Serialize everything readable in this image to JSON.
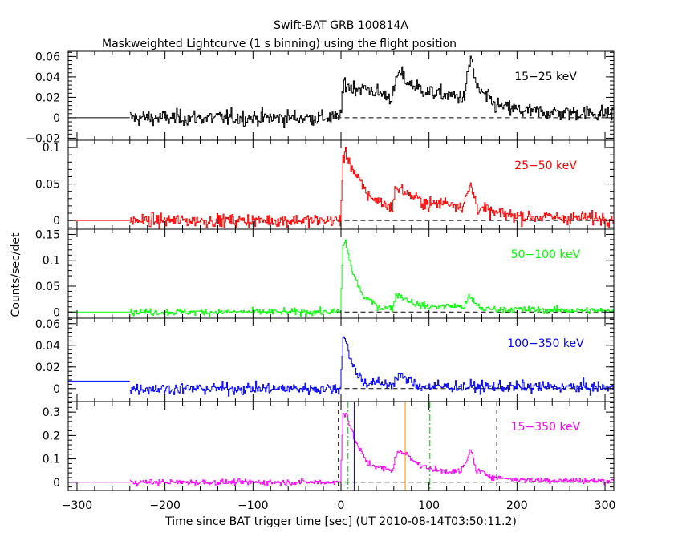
{
  "chart_data": {
    "type": "line",
    "title": "Swift-BAT GRB 100814A",
    "subtitle": "Maskweighted Lightcurve (1 s binning) using the flight position",
    "xlabel": "Time since BAT trigger time [sec] (UT 2010-08-14T03:50:11.2)",
    "ylabel": "Counts/sec/det",
    "xlim": [
      -310,
      310
    ],
    "xticks": [
      -300,
      -200,
      -100,
      0,
      100,
      200,
      300
    ],
    "data_start": -240,
    "panels": [
      {
        "name": "15−25 keV",
        "color": "#000000",
        "ylim": [
          -0.022,
          0.065
        ],
        "yticks": [
          -0.02,
          0,
          0.02,
          0.04,
          0.06
        ],
        "yticklabels": [
          "−0.02",
          "0",
          "0.02",
          "0.04",
          "0.06"
        ],
        "pre_level": 0,
        "noise": 0.0065,
        "shape": [
          [
            -5,
            0.0
          ],
          [
            0,
            0.006
          ],
          [
            3,
            0.035
          ],
          [
            10,
            0.03
          ],
          [
            30,
            0.028
          ],
          [
            50,
            0.022
          ],
          [
            58,
            0.02
          ],
          [
            65,
            0.045
          ],
          [
            75,
            0.035
          ],
          [
            90,
            0.028
          ],
          [
            100,
            0.025
          ],
          [
            120,
            0.022
          ],
          [
            140,
            0.02
          ],
          [
            145,
            0.05
          ],
          [
            148,
            0.06
          ],
          [
            153,
            0.03
          ],
          [
            175,
            0.012
          ],
          [
            210,
            0.006
          ],
          [
            310,
            0.004
          ]
        ]
      },
      {
        "name": "25−50 keV",
        "color": "#ff0000",
        "ylim": [
          -0.012,
          0.11
        ],
        "yticks": [
          0,
          0.05,
          0.1
        ],
        "yticklabels": [
          "0",
          "0.05",
          "0.1"
        ],
        "pre_level": 0,
        "noise": 0.0075,
        "shape": [
          [
            -5,
            0.0
          ],
          [
            -1,
            0.0
          ],
          [
            2,
            0.085
          ],
          [
            6,
            0.09
          ],
          [
            15,
            0.065
          ],
          [
            30,
            0.035
          ],
          [
            55,
            0.018
          ],
          [
            58,
            0.02
          ],
          [
            62,
            0.045
          ],
          [
            72,
            0.04
          ],
          [
            85,
            0.03
          ],
          [
            100,
            0.022
          ],
          [
            120,
            0.025
          ],
          [
            138,
            0.02
          ],
          [
            143,
            0.035
          ],
          [
            147,
            0.048
          ],
          [
            155,
            0.018
          ],
          [
            175,
            0.01
          ],
          [
            210,
            0.005
          ],
          [
            310,
            0.003
          ]
        ]
      },
      {
        "name": "50−100 keV",
        "color": "#00ff00",
        "ylim": [
          -0.012,
          0.16
        ],
        "yticks": [
          0,
          0.05,
          0.1,
          0.15
        ],
        "yticklabels": [
          "0",
          "0.05",
          "0.1",
          "0.15"
        ],
        "pre_level": 0,
        "noise": 0.0055,
        "shape": [
          [
            -5,
            0.0
          ],
          [
            -1,
            0.0
          ],
          [
            2,
            0.13
          ],
          [
            5,
            0.135
          ],
          [
            12,
            0.08
          ],
          [
            25,
            0.03
          ],
          [
            45,
            0.008
          ],
          [
            58,
            0.008
          ],
          [
            63,
            0.035
          ],
          [
            70,
            0.028
          ],
          [
            85,
            0.015
          ],
          [
            100,
            0.01
          ],
          [
            125,
            0.012
          ],
          [
            140,
            0.01
          ],
          [
            145,
            0.03
          ],
          [
            150,
            0.02
          ],
          [
            160,
            0.006
          ],
          [
            310,
            0.002
          ]
        ]
      },
      {
        "name": "100−350 keV",
        "color": "#0000ff",
        "ylim": [
          -0.012,
          0.065
        ],
        "yticks": [
          0,
          0.02,
          0.04,
          0.06
        ],
        "yticklabels": [
          "0",
          "0.02",
          "0.04",
          "0.06"
        ],
        "pre_level": 0.007,
        "noise": 0.0045,
        "shape": [
          [
            -5,
            0.0
          ],
          [
            -1,
            0.0
          ],
          [
            2,
            0.05
          ],
          [
            5,
            0.045
          ],
          [
            12,
            0.022
          ],
          [
            25,
            0.006
          ],
          [
            58,
            0.004
          ],
          [
            65,
            0.012
          ],
          [
            75,
            0.008
          ],
          [
            90,
            0.002
          ],
          [
            310,
            0.001
          ]
        ]
      },
      {
        "name": "15−350 keV",
        "color": "#ff00ff",
        "ylim": [
          -0.035,
          0.345
        ],
        "yticks": [
          0,
          0.1,
          0.2,
          0.3
        ],
        "yticklabels": [
          "0",
          "0.1",
          "0.2",
          "0.3"
        ],
        "pre_level": 0,
        "noise": 0.0105,
        "shape": [
          [
            -5,
            0.0
          ],
          [
            -1,
            0.0
          ],
          [
            2,
            0.3
          ],
          [
            6,
            0.29
          ],
          [
            15,
            0.18
          ],
          [
            30,
            0.08
          ],
          [
            55,
            0.05
          ],
          [
            58,
            0.05
          ],
          [
            63,
            0.13
          ],
          [
            75,
            0.12
          ],
          [
            90,
            0.07
          ],
          [
            110,
            0.05
          ],
          [
            135,
            0.045
          ],
          [
            143,
            0.09
          ],
          [
            147,
            0.15
          ],
          [
            153,
            0.05
          ],
          [
            175,
            0.02
          ],
          [
            210,
            0.01
          ],
          [
            310,
            0.005
          ]
        ],
        "markers": [
          {
            "x": -3,
            "color": "#000000",
            "style": "dashed"
          },
          {
            "x": 8,
            "color": "#00c000",
            "style": "dashdot"
          },
          {
            "x": 15,
            "color": "#0000ff",
            "style": "solid"
          },
          {
            "x": 73,
            "color": "#ff8c00",
            "style": "solid"
          },
          {
            "x": 101,
            "color": "#00c000",
            "style": "dashdot"
          },
          {
            "x": 177,
            "color": "#000000",
            "style": "dashed"
          }
        ]
      }
    ],
    "grid": false,
    "legend": "none"
  }
}
